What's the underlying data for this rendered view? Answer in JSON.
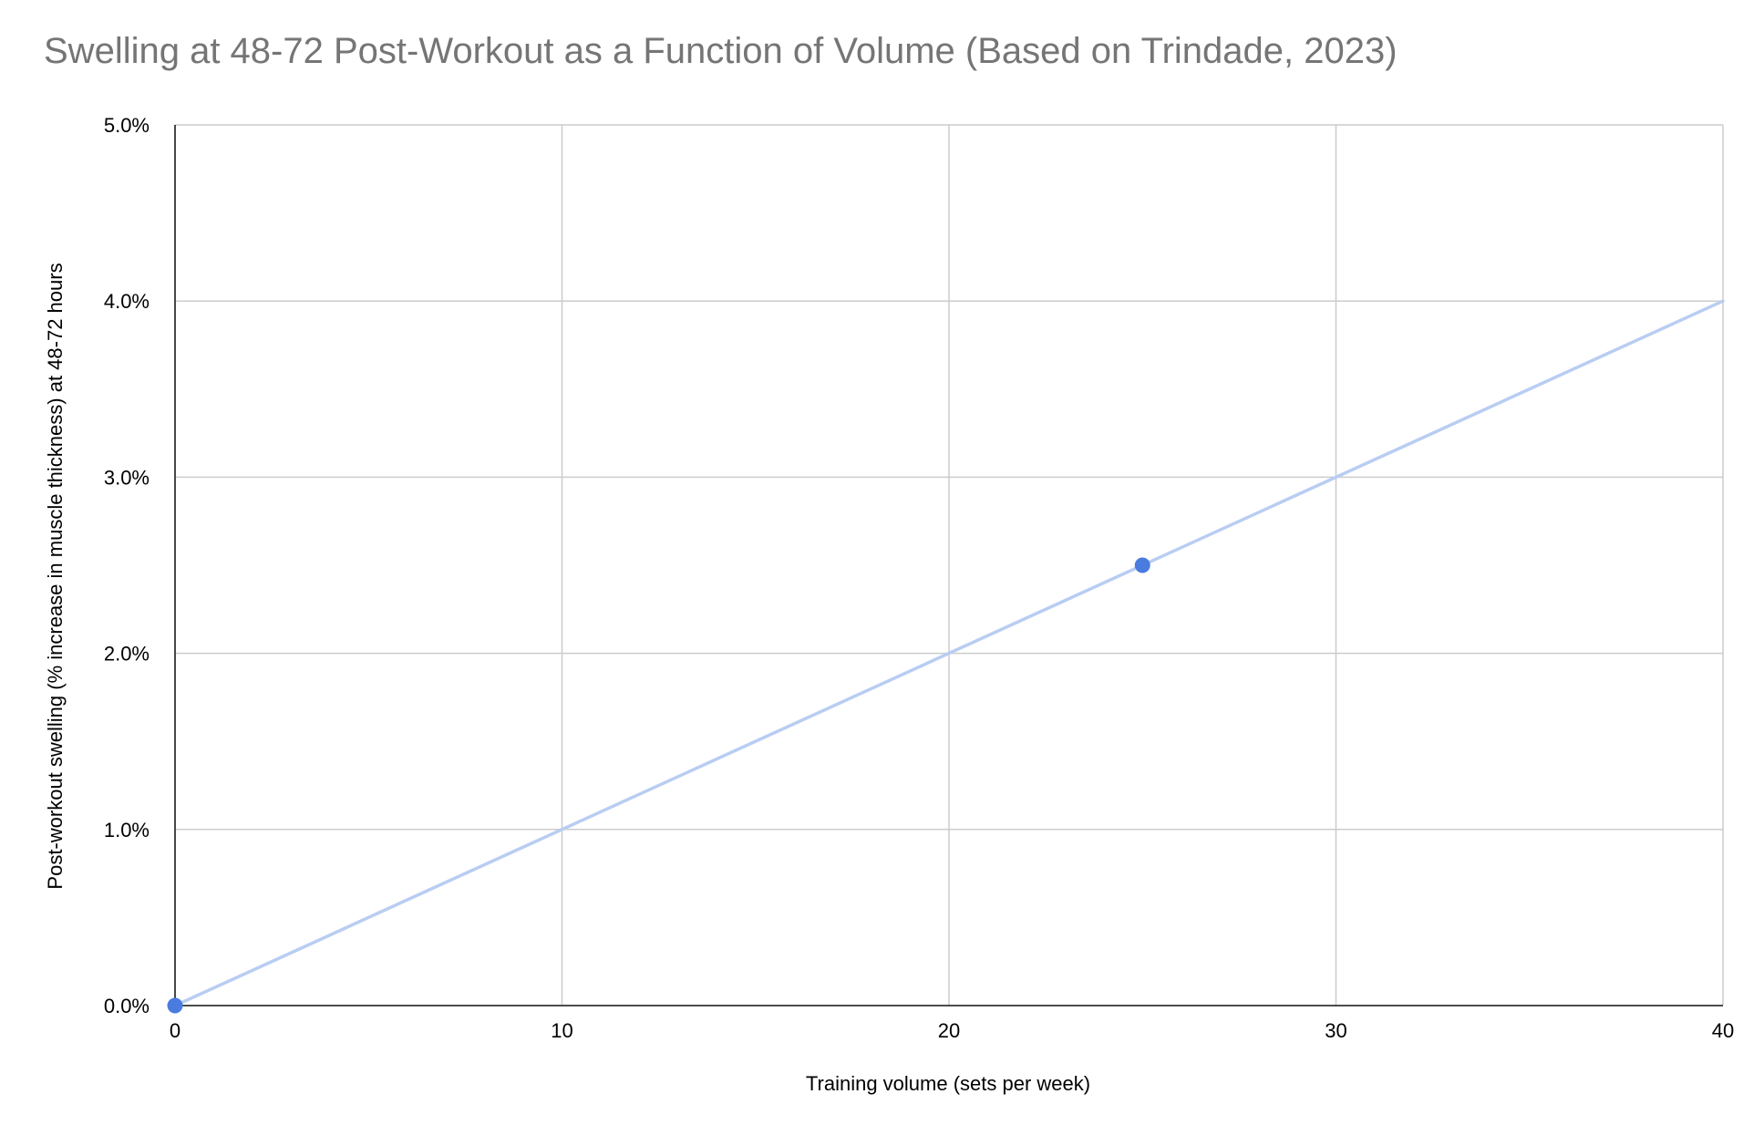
{
  "chart_data": {
    "type": "scatter",
    "title": "Swelling at 48-72 Post-Workout as a Function of Volume (Based on Trindade, 2023)",
    "xlabel": "Training volume (sets per week)",
    "ylabel": "Post-workout swelling (% increase in muscle thickness) at 48-72 hours",
    "xlim": [
      0,
      40
    ],
    "ylim": [
      0,
      0.05
    ],
    "x_ticks": [
      0,
      10,
      20,
      30,
      40
    ],
    "x_tick_labels": [
      "0",
      "10",
      "20",
      "30",
      "40"
    ],
    "y_ticks": [
      0,
      0.01,
      0.02,
      0.03,
      0.04,
      0.05
    ],
    "y_tick_labels": [
      "0.0%",
      "1.0%",
      "2.0%",
      "3.0%",
      "4.0%",
      "5.0%"
    ],
    "grid": true,
    "legend": "none",
    "series": [
      {
        "x": [
          0,
          25
        ],
        "y": [
          0.0,
          0.025
        ],
        "color": "#4a7bdf",
        "trendline": {
          "type": "linear",
          "slope": 0.001,
          "intercept": 0,
          "color": "#b9cdf3",
          "x_range": [
            0,
            40
          ]
        }
      }
    ]
  }
}
